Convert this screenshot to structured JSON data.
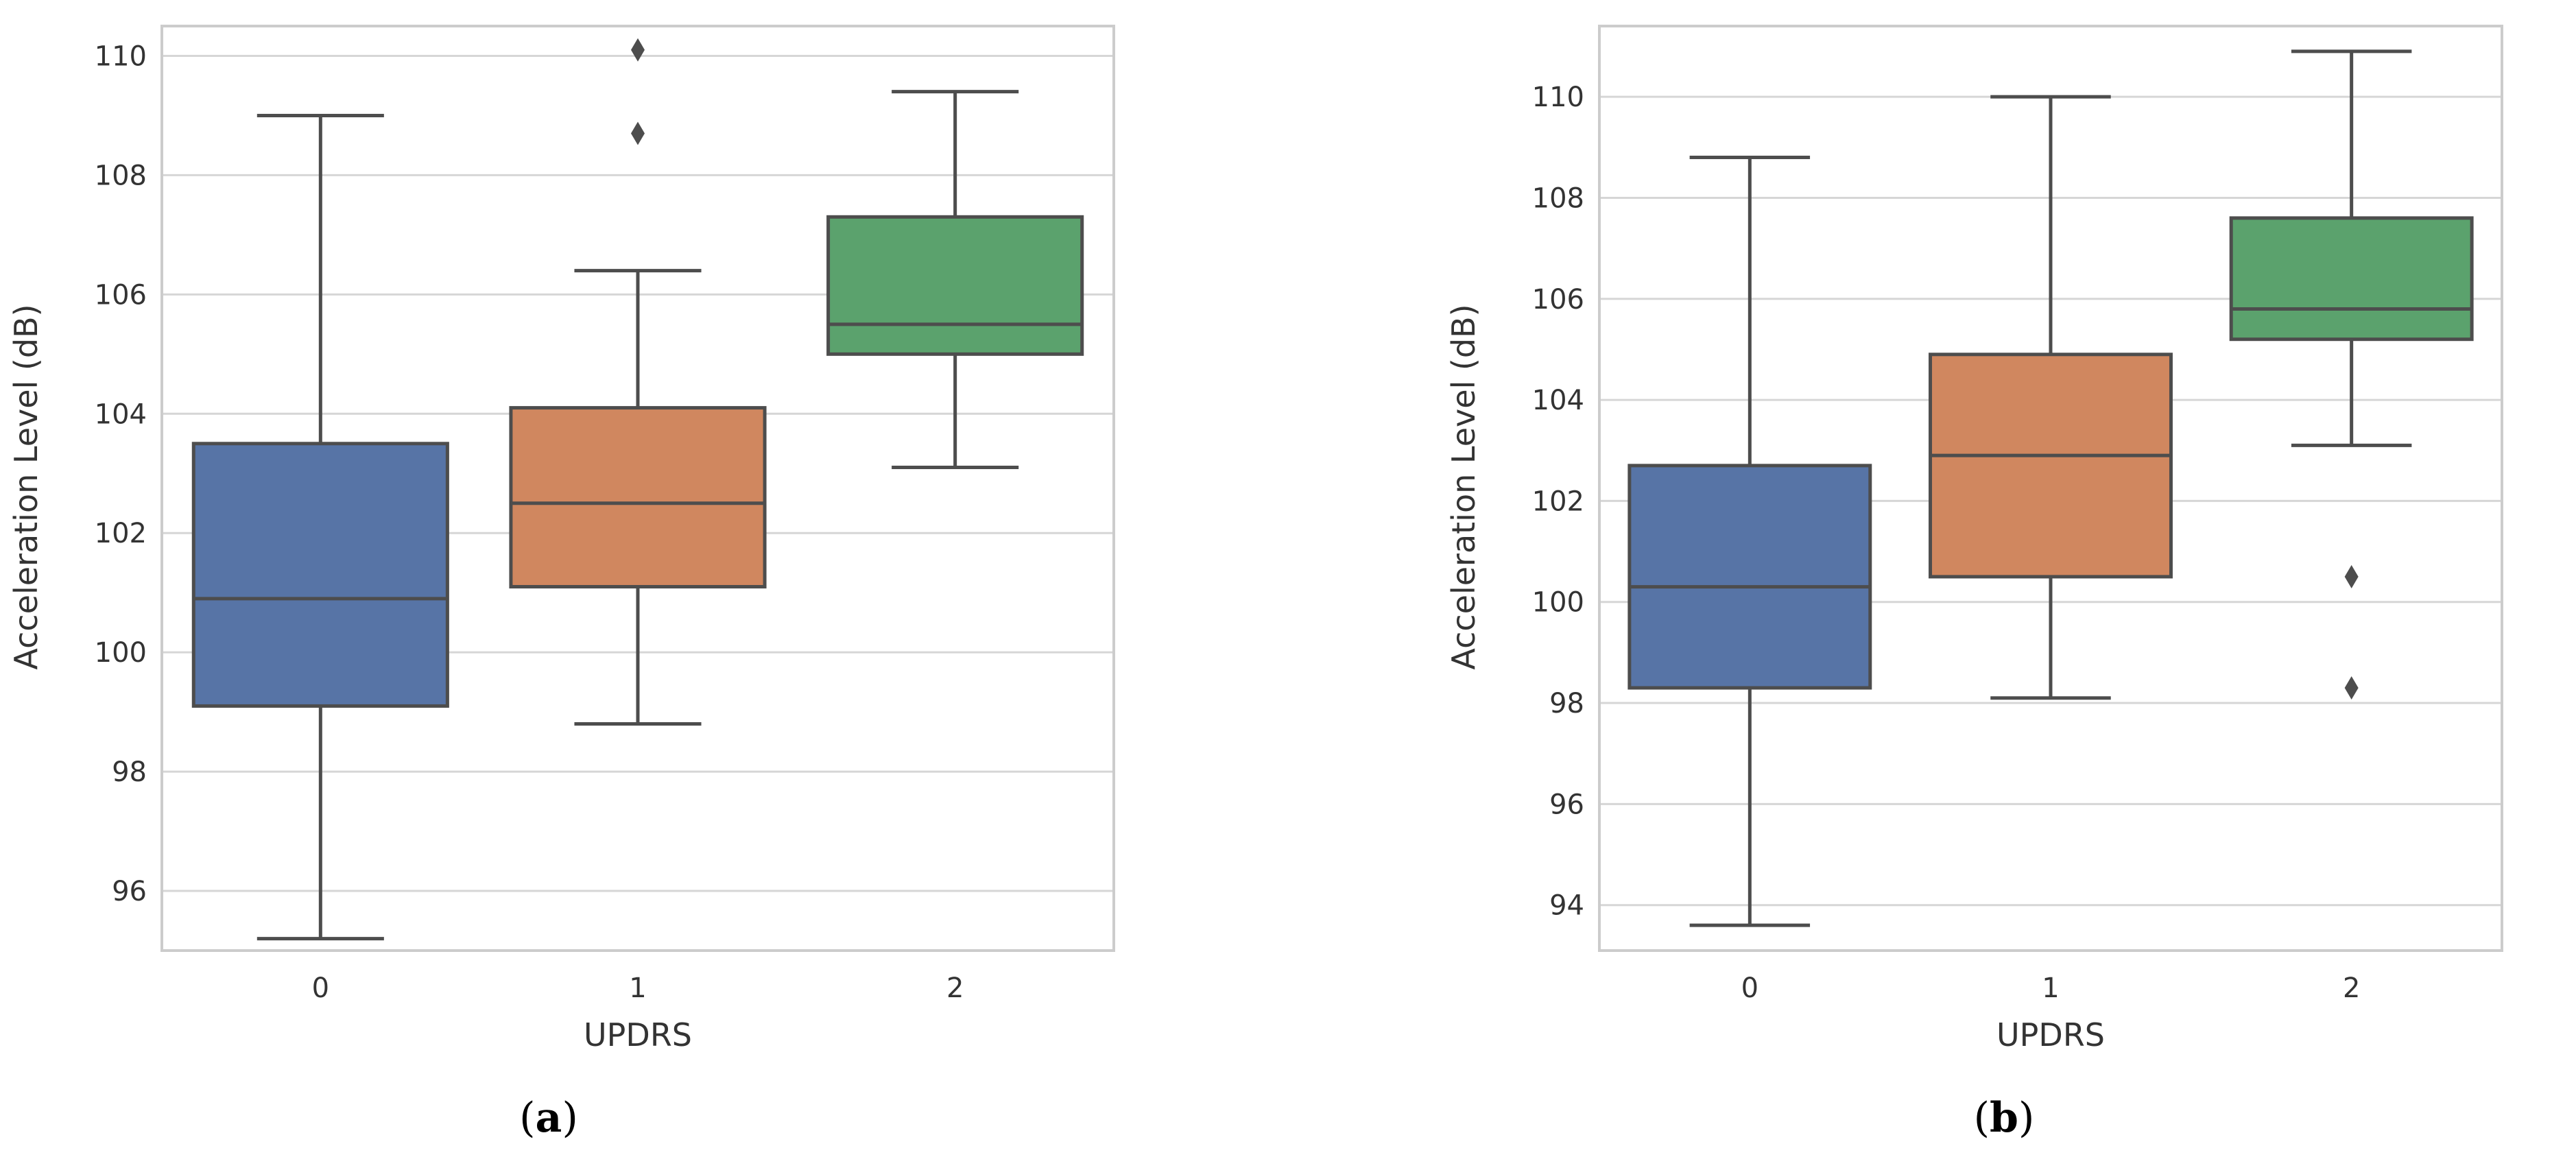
{
  "chart_data": [
    {
      "type": "box",
      "panel_label": "b",
      "panel_paren_open": "(",
      "panel_paren_close": ")",
      "xlabel": "UPDRS",
      "ylabel": "Acceleration Level (dB)",
      "categories": [
        "0",
        "1",
        "2"
      ],
      "ylim": [
        95.0,
        110.5
      ],
      "yticks": [
        96,
        98,
        100,
        102,
        104,
        106,
        108,
        110
      ],
      "grid": true,
      "colors": [
        "#5774a6",
        "#d0875f",
        "#5ba26d"
      ],
      "boxes": [
        {
          "category": "0",
          "whisker_low": 95.2,
          "q1": 99.1,
          "median": 100.9,
          "q3": 103.5,
          "whisker_high": 109.0,
          "outliers": []
        },
        {
          "category": "1",
          "whisker_low": 98.8,
          "q1": 101.1,
          "median": 102.5,
          "q3": 104.1,
          "whisker_high": 106.4,
          "outliers": [
            108.7,
            110.1
          ]
        },
        {
          "category": "2",
          "whisker_low": 103.1,
          "q1": 105.0,
          "median": 105.5,
          "q3": 107.3,
          "whisker_high": 109.4,
          "outliers": []
        }
      ]
    },
    {
      "type": "box",
      "panel_label": "b",
      "panel_paren_open": "(",
      "panel_paren_close": ")",
      "xlabel": "UPDRS",
      "ylabel": "Acceleration Level (dB)",
      "categories": [
        "0",
        "1",
        "2"
      ],
      "ylim": [
        93.1,
        111.4
      ],
      "yticks": [
        94,
        96,
        98,
        100,
        102,
        104,
        106,
        108,
        110
      ],
      "grid": true,
      "colors": [
        "#5774a6",
        "#d0875f",
        "#5ba26d"
      ],
      "boxes": [
        {
          "category": "0",
          "whisker_low": 93.6,
          "q1": 98.3,
          "median": 100.3,
          "q3": 102.7,
          "whisker_high": 108.8,
          "outliers": []
        },
        {
          "category": "1",
          "whisker_low": 98.1,
          "q1": 100.5,
          "median": 102.9,
          "q3": 104.9,
          "whisker_high": 110.0,
          "outliers": []
        },
        {
          "category": "2",
          "whisker_low": 103.1,
          "q1": 105.2,
          "median": 105.8,
          "q3": 107.6,
          "whisker_high": 110.9,
          "outliers": [
            100.5,
            98.3
          ]
        }
      ]
    }
  ]
}
